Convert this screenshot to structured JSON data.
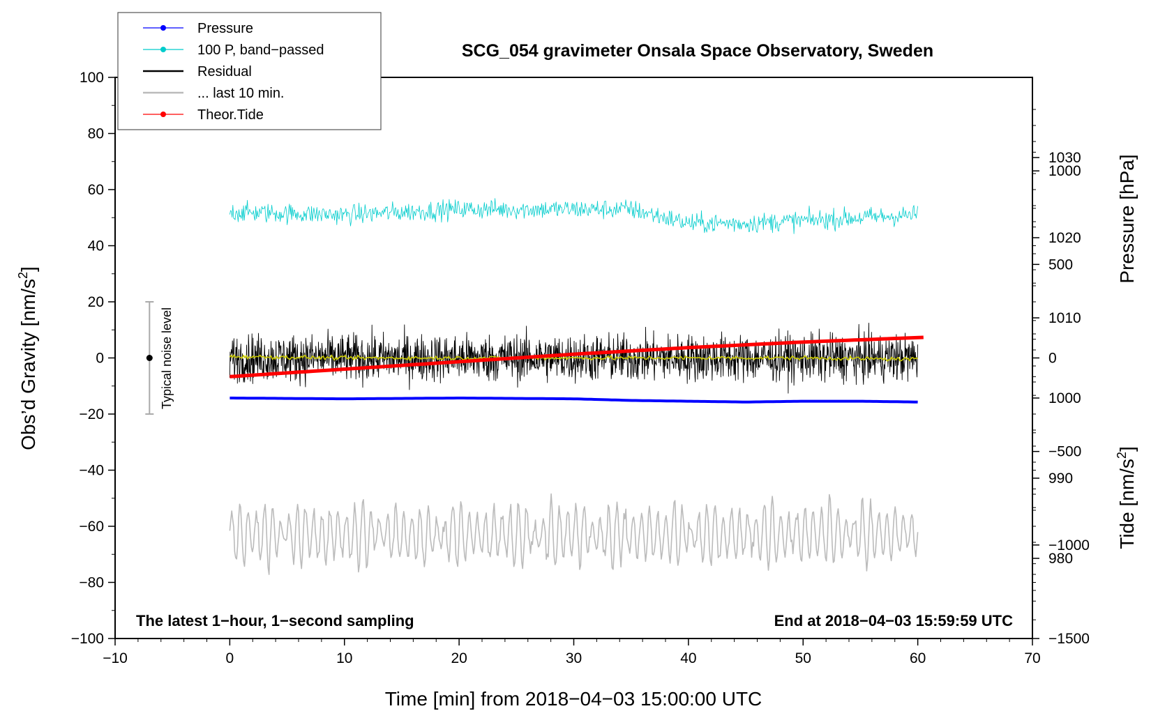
{
  "chart_data": {
    "type": "line",
    "title": "SCG_054 gravimeter Onsala Space Observatory, Sweden",
    "xlabel": "Time [min] from 2018−04−03 15:00:00 UTC",
    "ylabel_left_main": "Obs’d Gravity [nm/s",
    "ylabel_left_sup": "2",
    "ylabel_left_end": "]",
    "ylabel_right_pressure": "Pressure [hPa]",
    "ylabel_right_tide_main": "Tide [nm/s",
    "ylabel_right_tide_sup": "2",
    "ylabel_right_tide_end": "]",
    "note_left": "The latest 1−hour, 1−second sampling",
    "note_right": "End at 2018−04−03 15:59:59 UTC",
    "noise_label": "Typical noise level",
    "noise_range": [
      -20,
      20
    ],
    "noise_x": -7,
    "xlim": [
      -10,
      70
    ],
    "ylim": [
      -100,
      100
    ],
    "pressure_lim": [
      970,
      1040
    ],
    "tide_lim": [
      -1500,
      1500
    ],
    "x_ticks": [
      -10,
      0,
      10,
      20,
      30,
      40,
      50,
      60,
      70
    ],
    "x_tick_labels": [
      "−10",
      "0",
      "10",
      "20",
      "30",
      "40",
      "50",
      "60",
      "70"
    ],
    "y_ticks": [
      -100,
      -80,
      -60,
      -40,
      -20,
      0,
      20,
      40,
      60,
      80,
      100
    ],
    "y_tick_labels": [
      "−100",
      "−80",
      "−60",
      "−40",
      "−20",
      "0",
      "20",
      "40",
      "60",
      "80",
      "100"
    ],
    "pressure_ticks": [
      980,
      990,
      1000,
      1010,
      1020,
      1030
    ],
    "pressure_tick_labels": [
      "980",
      "990",
      "1000",
      "1010",
      "1020",
      "1030"
    ],
    "tide_ticks": [
      -1500,
      -1000,
      -500,
      0,
      500,
      1000
    ],
    "tide_tick_labels": [
      "−1500",
      "−1000",
      "−500",
      "0",
      "500",
      "1000"
    ],
    "legend": [
      {
        "label": "Pressure",
        "color": "#0000ff",
        "marker": true
      },
      {
        "label": "100 P, band−passed",
        "color": "#00cccc",
        "marker": true
      },
      {
        "label": "Residual",
        "color": "#000000",
        "marker": false
      },
      {
        "label": "... last 10 min.",
        "color": "#bbbbbb",
        "marker": false
      },
      {
        "label": "Theor.Tide",
        "color": "#ff0000",
        "marker": true
      }
    ],
    "series": [
      {
        "name": "Pressure",
        "axis": "pressure",
        "color": "#0000ff",
        "x": [
          0,
          10,
          20,
          30,
          35,
          40,
          45,
          50,
          55,
          60
        ],
        "values": [
          1000.0,
          999.9,
          1000.0,
          999.9,
          999.7,
          999.6,
          999.5,
          999.6,
          999.6,
          999.5
        ]
      },
      {
        "name": "100 P, band−passed",
        "axis": "gravity",
        "color": "#00cccc",
        "x": [
          0,
          10,
          20,
          30,
          35,
          40,
          45,
          50,
          55,
          60
        ],
        "values": [
          52,
          51,
          53,
          53,
          53,
          48,
          48,
          49,
          50,
          51
        ],
        "noise_amplitude": 5
      },
      {
        "name": "Residual",
        "axis": "gravity",
        "color": "#000000",
        "x": [
          0,
          60
        ],
        "values": [
          0,
          0
        ],
        "noise_amplitude": 12
      },
      {
        "name": "Residual smoothed",
        "axis": "gravity",
        "color": "#cccc00",
        "x": [
          0,
          10,
          20,
          30,
          40,
          50,
          60
        ],
        "values": [
          0.5,
          0,
          0,
          0,
          0,
          0,
          -0.5
        ]
      },
      {
        "name": "... last 10 min.",
        "axis": "gravity",
        "color": "#bbbbbb",
        "x": [
          0,
          60
        ],
        "values": [
          -63,
          -63
        ],
        "oscillation_amplitude": 10
      },
      {
        "name": "Theor.Tide",
        "axis": "tide",
        "color": "#ff0000",
        "x": [
          0,
          10,
          20,
          30,
          40,
          50,
          60.5
        ],
        "values": [
          -100,
          -60,
          -20,
          20,
          55,
          85,
          110
        ]
      }
    ]
  }
}
